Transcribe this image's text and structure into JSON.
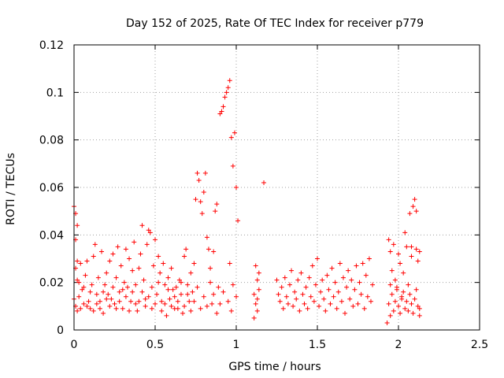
{
  "chart_data": {
    "type": "scatter",
    "title": "Day 152 of 2025, Rate Of TEC Index for receiver p779",
    "xlabel": "GPS time / hours",
    "ylabel": "ROTI / TECUs",
    "xlim": [
      0,
      2.5
    ],
    "ylim": [
      0,
      0.12
    ],
    "x_ticks": [
      0,
      0.5,
      1,
      1.5,
      2,
      2.5
    ],
    "x_tick_labels": [
      "0",
      "0.5",
      "1",
      "1.5",
      "2",
      "2.5"
    ],
    "y_ticks": [
      0,
      0.02,
      0.04,
      0.06,
      0.08,
      0.1,
      0.12
    ],
    "y_tick_labels": [
      "0",
      "0.02",
      "0.04",
      "0.06",
      "0.08",
      "0.1",
      "0.12"
    ],
    "grid": true,
    "marker": "+",
    "color": "#ff0000",
    "series": [
      {
        "name": "ROTI",
        "points": [
          [
            0.0,
            0.052
          ],
          [
            0.01,
            0.049
          ],
          [
            0.02,
            0.044
          ],
          [
            0.01,
            0.038
          ],
          [
            0.02,
            0.029
          ],
          [
            0.01,
            0.026
          ],
          [
            0.02,
            0.021
          ],
          [
            0.0,
            0.013
          ],
          [
            0.01,
            0.01
          ],
          [
            0.02,
            0.008
          ],
          [
            0.03,
            0.014
          ],
          [
            0.04,
            0.028
          ],
          [
            0.05,
            0.017
          ],
          [
            0.06,
            0.011
          ],
          [
            0.07,
            0.023
          ],
          [
            0.08,
            0.029
          ],
          [
            0.09,
            0.012
          ],
          [
            0.1,
            0.009
          ],
          [
            0.11,
            0.019
          ],
          [
            0.12,
            0.031
          ],
          [
            0.13,
            0.036
          ],
          [
            0.14,
            0.015
          ],
          [
            0.15,
            0.022
          ],
          [
            0.16,
            0.012
          ],
          [
            0.17,
            0.033
          ],
          [
            0.18,
            0.007
          ],
          [
            0.19,
            0.019
          ],
          [
            0.2,
            0.024
          ],
          [
            0.21,
            0.015
          ],
          [
            0.22,
            0.029
          ],
          [
            0.23,
            0.013
          ],
          [
            0.24,
            0.032
          ],
          [
            0.25,
            0.011
          ],
          [
            0.26,
            0.022
          ],
          [
            0.27,
            0.035
          ],
          [
            0.28,
            0.016
          ],
          [
            0.29,
            0.027
          ],
          [
            0.3,
            0.009
          ],
          [
            0.31,
            0.02
          ],
          [
            0.32,
            0.034
          ],
          [
            0.33,
            0.018
          ],
          [
            0.34,
            0.03
          ],
          [
            0.35,
            0.012
          ],
          [
            0.36,
            0.025
          ],
          [
            0.37,
            0.037
          ],
          [
            0.38,
            0.019
          ],
          [
            0.39,
            0.008
          ],
          [
            0.4,
            0.026
          ],
          [
            0.41,
            0.032
          ],
          [
            0.42,
            0.044
          ],
          [
            0.43,
            0.021
          ],
          [
            0.44,
            0.013
          ],
          [
            0.45,
            0.036
          ],
          [
            0.46,
            0.042
          ],
          [
            0.47,
            0.041
          ],
          [
            0.48,
            0.018
          ],
          [
            0.49,
            0.027
          ],
          [
            0.5,
            0.038
          ],
          [
            0.51,
            0.015
          ],
          [
            0.52,
            0.031
          ],
          [
            0.53,
            0.024
          ],
          [
            0.54,
            0.012
          ],
          [
            0.55,
            0.028
          ],
          [
            0.56,
            0.019
          ],
          [
            0.57,
            0.006
          ],
          [
            0.58,
            0.022
          ],
          [
            0.59,
            0.013
          ],
          [
            0.6,
            0.026
          ],
          [
            0.61,
            0.017
          ],
          [
            0.62,
            0.009
          ],
          [
            0.63,
            0.018
          ],
          [
            0.64,
            0.012
          ],
          [
            0.65,
            0.021
          ],
          [
            0.66,
            0.015
          ],
          [
            0.67,
            0.007
          ],
          [
            0.68,
            0.031
          ],
          [
            0.69,
            0.034
          ],
          [
            0.7,
            0.019
          ],
          [
            0.71,
            0.012
          ],
          [
            0.72,
            0.024
          ],
          [
            0.73,
            0.016
          ],
          [
            0.74,
            0.028
          ],
          [
            0.75,
            0.055
          ],
          [
            0.76,
            0.066
          ],
          [
            0.77,
            0.063
          ],
          [
            0.78,
            0.054
          ],
          [
            0.79,
            0.049
          ],
          [
            0.8,
            0.058
          ],
          [
            0.81,
            0.066
          ],
          [
            0.82,
            0.039
          ],
          [
            0.83,
            0.034
          ],
          [
            0.84,
            0.026
          ],
          [
            0.85,
            0.011
          ],
          [
            0.86,
            0.033
          ],
          [
            0.87,
            0.05
          ],
          [
            0.88,
            0.053
          ],
          [
            0.89,
            0.018
          ],
          [
            0.9,
            0.091
          ],
          [
            0.91,
            0.092
          ],
          [
            0.92,
            0.094
          ],
          [
            0.93,
            0.098
          ],
          [
            0.94,
            0.1
          ],
          [
            0.95,
            0.102
          ],
          [
            0.96,
            0.105
          ],
          [
            0.96,
            0.028
          ],
          [
            0.97,
            0.081
          ],
          [
            0.98,
            0.069
          ],
          [
            0.99,
            0.083
          ],
          [
            1.0,
            0.06
          ],
          [
            1.01,
            0.046
          ],
          [
            0.98,
            0.019
          ],
          [
            1.0,
            0.014
          ],
          [
            0.97,
            0.008
          ],
          [
            0.95,
            0.012
          ],
          [
            0.92,
            0.016
          ],
          [
            0.9,
            0.011
          ],
          [
            0.88,
            0.007
          ],
          [
            0.86,
            0.015
          ],
          [
            0.84,
            0.02
          ],
          [
            0.82,
            0.01
          ],
          [
            0.8,
            0.014
          ],
          [
            0.78,
            0.009
          ],
          [
            0.76,
            0.018
          ],
          [
            0.74,
            0.012
          ],
          [
            0.72,
            0.008
          ],
          [
            0.7,
            0.015
          ],
          [
            0.68,
            0.01
          ],
          [
            0.66,
            0.02
          ],
          [
            0.64,
            0.009
          ],
          [
            0.62,
            0.014
          ],
          [
            0.6,
            0.01
          ],
          [
            0.58,
            0.017
          ],
          [
            0.56,
            0.011
          ],
          [
            0.54,
            0.008
          ],
          [
            0.52,
            0.02
          ],
          [
            0.5,
            0.011
          ],
          [
            0.48,
            0.009
          ],
          [
            0.46,
            0.014
          ],
          [
            0.44,
            0.01
          ],
          [
            0.42,
            0.016
          ],
          [
            0.4,
            0.012
          ],
          [
            0.38,
            0.011
          ],
          [
            0.36,
            0.016
          ],
          [
            0.34,
            0.008
          ],
          [
            0.32,
            0.014
          ],
          [
            0.3,
            0.017
          ],
          [
            0.28,
            0.012
          ],
          [
            0.26,
            0.009
          ],
          [
            0.24,
            0.018
          ],
          [
            0.22,
            0.01
          ],
          [
            0.2,
            0.013
          ],
          [
            0.18,
            0.016
          ],
          [
            0.16,
            0.009
          ],
          [
            0.14,
            0.011
          ],
          [
            0.12,
            0.008
          ],
          [
            0.1,
            0.016
          ],
          [
            0.08,
            0.01
          ],
          [
            0.06,
            0.018
          ],
          [
            0.04,
            0.009
          ],
          [
            0.03,
            0.02
          ],
          [
            1.12,
            0.027
          ],
          [
            1.13,
            0.021
          ],
          [
            1.11,
            0.015
          ],
          [
            1.12,
            0.011
          ],
          [
            1.13,
            0.008
          ],
          [
            1.14,
            0.017
          ],
          [
            1.13,
            0.013
          ],
          [
            1.11,
            0.005
          ],
          [
            1.14,
            0.024
          ],
          [
            1.17,
            0.062
          ],
          [
            1.25,
            0.021
          ],
          [
            1.26,
            0.015
          ],
          [
            1.27,
            0.012
          ],
          [
            1.28,
            0.018
          ],
          [
            1.29,
            0.009
          ],
          [
            1.3,
            0.022
          ],
          [
            1.31,
            0.014
          ],
          [
            1.32,
            0.011
          ],
          [
            1.33,
            0.019
          ],
          [
            1.34,
            0.025
          ],
          [
            1.35,
            0.01
          ],
          [
            1.36,
            0.016
          ],
          [
            1.37,
            0.013
          ],
          [
            1.38,
            0.021
          ],
          [
            1.39,
            0.008
          ],
          [
            1.4,
            0.024
          ],
          [
            1.41,
            0.015
          ],
          [
            1.42,
            0.011
          ],
          [
            1.43,
            0.018
          ],
          [
            1.44,
            0.009
          ],
          [
            1.45,
            0.022
          ],
          [
            1.46,
            0.014
          ],
          [
            1.47,
            0.027
          ],
          [
            1.48,
            0.012
          ],
          [
            1.49,
            0.019
          ],
          [
            1.5,
            0.03
          ],
          [
            1.51,
            0.01
          ],
          [
            1.52,
            0.016
          ],
          [
            1.53,
            0.021
          ],
          [
            1.54,
            0.013
          ],
          [
            1.55,
            0.008
          ],
          [
            1.56,
            0.023
          ],
          [
            1.57,
            0.017
          ],
          [
            1.58,
            0.011
          ],
          [
            1.59,
            0.026
          ],
          [
            1.6,
            0.014
          ],
          [
            1.61,
            0.02
          ],
          [
            1.62,
            0.009
          ],
          [
            1.63,
            0.016
          ],
          [
            1.64,
            0.028
          ],
          [
            1.65,
            0.012
          ],
          [
            1.66,
            0.022
          ],
          [
            1.67,
            0.007
          ],
          [
            1.68,
            0.018
          ],
          [
            1.69,
            0.025
          ],
          [
            1.7,
            0.013
          ],
          [
            1.71,
            0.021
          ],
          [
            1.72,
            0.01
          ],
          [
            1.73,
            0.017
          ],
          [
            1.74,
            0.027
          ],
          [
            1.75,
            0.011
          ],
          [
            1.76,
            0.02
          ],
          [
            1.77,
            0.015
          ],
          [
            1.78,
            0.028
          ],
          [
            1.79,
            0.009
          ],
          [
            1.8,
            0.023
          ],
          [
            1.81,
            0.014
          ],
          [
            1.82,
            0.03
          ],
          [
            1.83,
            0.012
          ],
          [
            1.84,
            0.019
          ],
          [
            1.94,
            0.038
          ],
          [
            1.95,
            0.033
          ],
          [
            1.96,
            0.025
          ],
          [
            1.97,
            0.036
          ],
          [
            1.98,
            0.021
          ],
          [
            1.99,
            0.017
          ],
          [
            2.0,
            0.032
          ],
          [
            2.01,
            0.028
          ],
          [
            2.02,
            0.014
          ],
          [
            2.03,
            0.024
          ],
          [
            2.04,
            0.041
          ],
          [
            2.05,
            0.035
          ],
          [
            2.06,
            0.019
          ],
          [
            2.07,
            0.049
          ],
          [
            2.08,
            0.031
          ],
          [
            2.09,
            0.052
          ],
          [
            2.1,
            0.055
          ],
          [
            2.11,
            0.05
          ],
          [
            2.12,
            0.029
          ],
          [
            2.13,
            0.009
          ],
          [
            1.94,
            0.011
          ],
          [
            1.95,
            0.006
          ],
          [
            1.96,
            0.015
          ],
          [
            1.97,
            0.008
          ],
          [
            1.98,
            0.012
          ],
          [
            1.99,
            0.018
          ],
          [
            2.0,
            0.01
          ],
          [
            2.01,
            0.007
          ],
          [
            2.02,
            0.013
          ],
          [
            2.03,
            0.016
          ],
          [
            2.04,
            0.009
          ],
          [
            2.05,
            0.012
          ],
          [
            2.06,
            0.008
          ],
          [
            2.07,
            0.015
          ],
          [
            2.08,
            0.011
          ],
          [
            2.09,
            0.007
          ],
          [
            2.1,
            0.013
          ],
          [
            2.11,
            0.017
          ],
          [
            2.12,
            0.01
          ],
          [
            2.13,
            0.006
          ],
          [
            1.93,
            0.003
          ],
          [
            1.95,
            0.019
          ],
          [
            2.08,
            0.035
          ],
          [
            2.11,
            0.034
          ],
          [
            2.13,
            0.033
          ]
        ]
      }
    ]
  }
}
